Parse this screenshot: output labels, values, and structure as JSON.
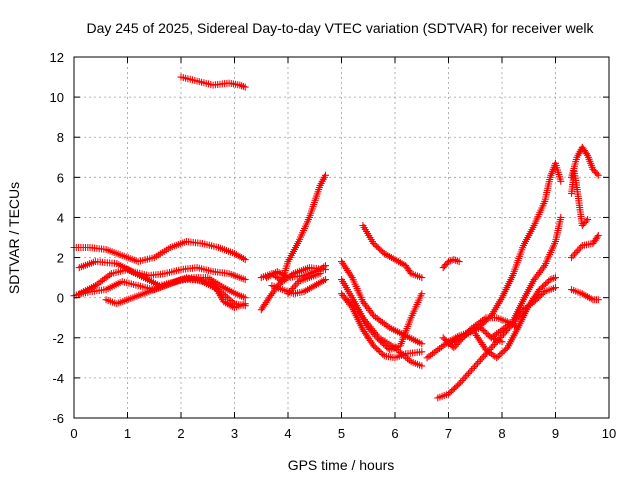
{
  "chart_data": {
    "type": "scatter",
    "title": "Day 245 of 2025, Sidereal Day-to-day VTEC variation (SDTVAR) for receiver welk",
    "xlabel": "GPS time / hours",
    "ylabel": "SDTVAR / TECUs",
    "xlim": [
      0,
      10
    ],
    "ylim": [
      -6,
      12
    ],
    "xticks": [
      "0",
      "1",
      "2",
      "3",
      "4",
      "5",
      "6",
      "7",
      "8",
      "9",
      "10"
    ],
    "yticks": [
      "-6",
      "-4",
      "-2",
      "0",
      "2",
      "4",
      "6",
      "8",
      "10",
      "12"
    ],
    "grid": true,
    "marker_color": "#ff0000",
    "marker": "plus",
    "tracks": [
      [
        [
          0.0,
          2.5
        ],
        [
          0.3,
          2.5
        ],
        [
          0.6,
          2.4
        ],
        [
          0.9,
          2.1
        ],
        [
          1.2,
          1.8
        ],
        [
          1.5,
          2.0
        ],
        [
          1.8,
          2.5
        ],
        [
          2.1,
          2.8
        ],
        [
          2.4,
          2.7
        ],
        [
          2.7,
          2.5
        ],
        [
          3.0,
          2.2
        ],
        [
          3.2,
          1.9
        ]
      ],
      [
        [
          0.1,
          1.5
        ],
        [
          0.4,
          1.8
        ],
        [
          0.8,
          1.7
        ],
        [
          1.1,
          1.3
        ],
        [
          1.4,
          1.1
        ],
        [
          1.7,
          1.2
        ],
        [
          2.0,
          1.4
        ],
        [
          2.3,
          1.5
        ],
        [
          2.6,
          1.3
        ],
        [
          2.9,
          1.2
        ],
        [
          3.2,
          0.9
        ]
      ],
      [
        [
          0.1,
          0.2
        ],
        [
          0.4,
          0.6
        ],
        [
          0.7,
          1.2
        ],
        [
          1.0,
          1.4
        ],
        [
          1.3,
          1.0
        ],
        [
          1.6,
          0.6
        ],
        [
          1.9,
          0.8
        ],
        [
          2.2,
          1.0
        ],
        [
          2.5,
          1.0
        ],
        [
          2.8,
          0.5
        ],
        [
          3.1,
          0.1
        ],
        [
          3.2,
          0.0
        ]
      ],
      [
        [
          0.0,
          0.1
        ],
        [
          0.3,
          0.3
        ],
        [
          0.6,
          0.4
        ],
        [
          0.9,
          0.8
        ],
        [
          1.2,
          0.6
        ],
        [
          1.5,
          0.4
        ],
        [
          1.8,
          0.7
        ],
        [
          2.1,
          1.0
        ],
        [
          2.4,
          0.8
        ],
        [
          2.7,
          0.4
        ],
        [
          3.0,
          -0.3
        ],
        [
          3.2,
          -0.4
        ]
      ],
      [
        [
          0.6,
          -0.1
        ],
        [
          0.8,
          -0.3
        ],
        [
          1.1,
          0.0
        ],
        [
          1.4,
          0.3
        ],
        [
          1.7,
          0.6
        ],
        [
          2.0,
          0.9
        ],
        [
          2.3,
          0.9
        ],
        [
          2.6,
          0.7
        ],
        [
          2.8,
          -0.2
        ],
        [
          3.0,
          -0.5
        ],
        [
          3.2,
          -0.3
        ]
      ],
      [
        [
          2.0,
          11.0
        ],
        [
          2.3,
          10.8
        ],
        [
          2.6,
          10.6
        ],
        [
          2.9,
          10.7
        ],
        [
          3.1,
          10.6
        ],
        [
          3.2,
          10.5
        ]
      ],
      [
        [
          3.6,
          1.0
        ],
        [
          3.8,
          1.3
        ],
        [
          4.0,
          1.0
        ],
        [
          4.3,
          1.1
        ],
        [
          4.6,
          1.4
        ],
        [
          4.7,
          1.6
        ]
      ],
      [
        [
          3.5,
          -0.6
        ],
        [
          3.7,
          0.2
        ],
        [
          3.9,
          0.9
        ],
        [
          4.0,
          1.8
        ],
        [
          4.2,
          2.8
        ],
        [
          4.4,
          4.0
        ],
        [
          4.6,
          5.6
        ],
        [
          4.7,
          6.1
        ]
      ],
      [
        [
          3.7,
          0.6
        ],
        [
          3.9,
          0.4
        ],
        [
          4.1,
          0.2
        ],
        [
          4.3,
          0.3
        ],
        [
          4.5,
          0.6
        ],
        [
          4.7,
          0.9
        ]
      ],
      [
        [
          3.5,
          1.0
        ],
        [
          3.7,
          1.2
        ],
        [
          3.9,
          0.8
        ],
        [
          4.1,
          1.2
        ],
        [
          4.4,
          1.5
        ],
        [
          4.7,
          1.4
        ]
      ],
      [
        [
          4.0,
          0.2
        ],
        [
          4.2,
          0.8
        ],
        [
          4.4,
          1.0
        ],
        [
          4.6,
          1.2
        ]
      ],
      [
        [
          5.0,
          1.8
        ],
        [
          5.2,
          1.0
        ],
        [
          5.4,
          -0.2
        ],
        [
          5.6,
          -0.9
        ],
        [
          5.9,
          -1.5
        ],
        [
          6.2,
          -1.9
        ],
        [
          6.5,
          -2.3
        ]
      ],
      [
        [
          5.0,
          0.2
        ],
        [
          5.2,
          -0.5
        ],
        [
          5.4,
          -1.6
        ],
        [
          5.6,
          -2.4
        ],
        [
          5.8,
          -2.9
        ],
        [
          6.0,
          -3.0
        ],
        [
          6.2,
          -2.8
        ],
        [
          6.5,
          -2.7
        ]
      ],
      [
        [
          5.0,
          0.9
        ],
        [
          5.2,
          0.0
        ],
        [
          5.4,
          -1.0
        ],
        [
          5.7,
          -2.0
        ],
        [
          6.0,
          -2.5
        ],
        [
          6.3,
          -3.2
        ],
        [
          6.5,
          -3.4
        ]
      ],
      [
        [
          5.1,
          -0.1
        ],
        [
          5.3,
          -0.6
        ],
        [
          5.5,
          -1.5
        ],
        [
          5.7,
          -2.1
        ],
        [
          5.9,
          -2.6
        ],
        [
          6.1,
          -2.4
        ],
        [
          6.3,
          -1.0
        ],
        [
          6.5,
          0.2
        ]
      ],
      [
        [
          5.4,
          3.6
        ],
        [
          5.6,
          2.7
        ],
        [
          5.8,
          2.2
        ],
        [
          6.0,
          1.9
        ],
        [
          6.2,
          1.6
        ],
        [
          6.3,
          1.2
        ],
        [
          6.5,
          1.0
        ]
      ],
      [
        [
          6.6,
          -3.0
        ],
        [
          6.8,
          -2.6
        ],
        [
          7.0,
          -2.2
        ],
        [
          7.2,
          -1.9
        ],
        [
          7.4,
          -1.7
        ],
        [
          7.6,
          -1.5
        ],
        [
          7.8,
          -2.0
        ],
        [
          8.0,
          -2.2
        ]
      ],
      [
        [
          6.9,
          1.5
        ],
        [
          7.0,
          1.8
        ],
        [
          7.1,
          1.9
        ],
        [
          7.2,
          1.8
        ]
      ],
      [
        [
          6.9,
          -2.0
        ],
        [
          7.1,
          -2.5
        ],
        [
          7.4,
          -1.6
        ],
        [
          7.7,
          -1.0
        ],
        [
          7.9,
          -1.0
        ],
        [
          8.1,
          -1.2
        ],
        [
          8.3,
          -1.5
        ]
      ],
      [
        [
          6.8,
          -5.0
        ],
        [
          7.0,
          -4.8
        ],
        [
          7.2,
          -4.3
        ],
        [
          7.4,
          -3.7
        ],
        [
          7.6,
          -3.1
        ],
        [
          7.8,
          -2.5
        ],
        [
          8.0,
          -1.9
        ],
        [
          8.2,
          -1.3
        ],
        [
          8.4,
          -0.6
        ],
        [
          8.6,
          -0.2
        ],
        [
          8.8,
          0.3
        ],
        [
          9.0,
          0.5
        ]
      ],
      [
        [
          7.0,
          -2.3
        ],
        [
          7.3,
          -1.9
        ],
        [
          7.6,
          -1.4
        ],
        [
          7.8,
          -0.9
        ],
        [
          8.0,
          0.0
        ],
        [
          8.2,
          1.1
        ],
        [
          8.4,
          2.6
        ],
        [
          8.6,
          3.6
        ],
        [
          8.8,
          4.8
        ],
        [
          8.9,
          6.0
        ],
        [
          9.0,
          6.7
        ],
        [
          9.1,
          5.8
        ]
      ],
      [
        [
          7.8,
          -2.0
        ],
        [
          8.0,
          -1.6
        ],
        [
          8.2,
          -1.2
        ],
        [
          8.4,
          -0.1
        ],
        [
          8.6,
          0.9
        ],
        [
          8.8,
          1.6
        ],
        [
          9.0,
          2.8
        ],
        [
          9.1,
          4.0
        ]
      ],
      [
        [
          7.5,
          -1.8
        ],
        [
          7.7,
          -2.6
        ],
        [
          7.9,
          -3.0
        ],
        [
          8.1,
          -2.5
        ],
        [
          8.3,
          -1.5
        ],
        [
          8.5,
          -0.4
        ],
        [
          8.7,
          0.4
        ],
        [
          8.9,
          0.9
        ],
        [
          9.0,
          1.0
        ]
      ],
      [
        [
          9.3,
          6.0
        ],
        [
          9.4,
          7.0
        ],
        [
          9.5,
          7.5
        ],
        [
          9.6,
          7.1
        ],
        [
          9.7,
          6.4
        ],
        [
          9.8,
          6.1
        ]
      ],
      [
        [
          9.3,
          5.2
        ],
        [
          9.35,
          6.3
        ],
        [
          9.4,
          5.5
        ],
        [
          9.5,
          3.6
        ],
        [
          9.6,
          3.9
        ]
      ],
      [
        [
          9.3,
          2.0
        ],
        [
          9.5,
          2.6
        ],
        [
          9.7,
          2.7
        ],
        [
          9.8,
          3.1
        ]
      ],
      [
        [
          9.3,
          0.4
        ],
        [
          9.5,
          0.2
        ],
        [
          9.7,
          -0.1
        ],
        [
          9.8,
          -0.1
        ]
      ]
    ]
  }
}
